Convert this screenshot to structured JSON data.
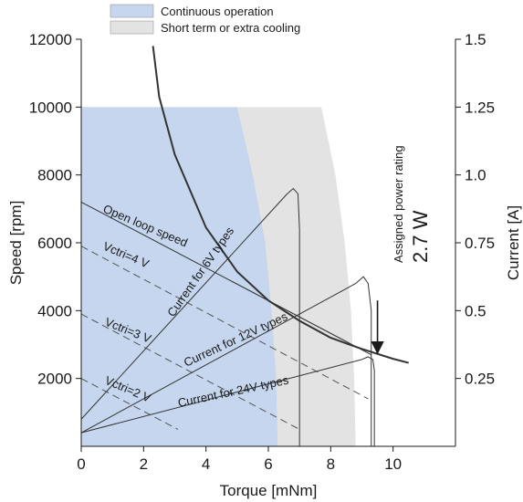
{
  "chart_data": {
    "type": "line",
    "xlabel": "Torque [mNm]",
    "ylabel": "Speed [rpm]",
    "y2label": "Current [A]",
    "xlim": [
      0,
      12
    ],
    "ylim": [
      0,
      12000
    ],
    "y2lim": [
      0,
      1.5
    ],
    "xticks": [
      0,
      2,
      4,
      6,
      8,
      10
    ],
    "yticks": [
      2000,
      4000,
      6000,
      8000,
      10000,
      12000
    ],
    "y2ticks": [
      "0.25",
      "0.5",
      "0.75",
      "1.0",
      "1.25",
      "1.5"
    ],
    "grid": false,
    "legend": {
      "placement": "top",
      "entries": [
        {
          "label": "Continuous operation",
          "color": "#c5d6ee"
        },
        {
          "label": "Short term or extra cooling",
          "color": "#e3e3e3"
        }
      ]
    },
    "regions": [
      {
        "name": "Continuous operation",
        "color": "#c5d6ee",
        "max_speed": 10000,
        "boundary": [
          [
            5.0,
            10000
          ],
          [
            5.5,
            8000
          ],
          [
            5.9,
            6000
          ],
          [
            6.1,
            4000
          ],
          [
            6.25,
            2000
          ],
          [
            6.3,
            0
          ]
        ]
      },
      {
        "name": "Short term or extra cooling",
        "color": "#e3e3e3",
        "max_speed": 10000,
        "boundary": [
          [
            7.7,
            10000
          ],
          [
            8.15,
            8000
          ],
          [
            8.45,
            6000
          ],
          [
            8.65,
            4000
          ],
          [
            8.75,
            2000
          ],
          [
            8.8,
            0
          ]
        ]
      }
    ],
    "series": [
      {
        "label": "Open loop speed",
        "style": "solid",
        "x": [
          0,
          9.3
        ],
        "y": [
          7200,
          2700
        ]
      },
      {
        "label": "Vctri=4 V",
        "style": "dashed",
        "x": [
          0,
          9.2
        ],
        "y": [
          5900,
          1400
        ]
      },
      {
        "label": "Vctri=3 V",
        "style": "dashed",
        "x": [
          0,
          7.0
        ],
        "y": [
          3900,
          500
        ]
      },
      {
        "label": "Vctri=2 V",
        "style": "dashed",
        "x": [
          0,
          3.1
        ],
        "y": [
          2000,
          500
        ]
      },
      {
        "label": "Current for 6V types",
        "style": "solid",
        "axis": "current",
        "x": [
          0,
          6.6,
          6.8,
          6.95,
          7.0,
          7.0
        ],
        "y": [
          0.1,
          0.93,
          0.95,
          0.93,
          0.8,
          0
        ]
      },
      {
        "label": "Current for 12V types",
        "style": "solid",
        "axis": "current",
        "x": [
          0,
          8.8,
          9.05,
          9.2,
          9.3,
          9.3
        ],
        "y": [
          0.05,
          0.6,
          0.625,
          0.6,
          0.5,
          0
        ]
      },
      {
        "label": "Current for 24V types",
        "style": "solid",
        "axis": "current",
        "x": [
          0,
          9.0,
          9.2,
          9.35,
          9.4,
          9.4
        ],
        "y": [
          0.05,
          0.32,
          0.33,
          0.32,
          0.28,
          0
        ]
      },
      {
        "label": "",
        "style": "bold",
        "note": "power curve",
        "x": [
          2.3,
          2.5,
          3.0,
          4.0,
          5.0,
          6.0,
          7.0,
          8.0,
          9.0,
          10.0,
          10.5
        ],
        "y": [
          11800,
          10300,
          8600,
          6450,
          5150,
          4300,
          3700,
          3200,
          2870,
          2580,
          2460
        ]
      }
    ],
    "annotations": [
      {
        "text": "Assigned power rating",
        "value_text": "2.7 W",
        "arrow_from": [
          9.5,
          4300
        ],
        "arrow_to": [
          9.5,
          2750
        ]
      }
    ]
  }
}
